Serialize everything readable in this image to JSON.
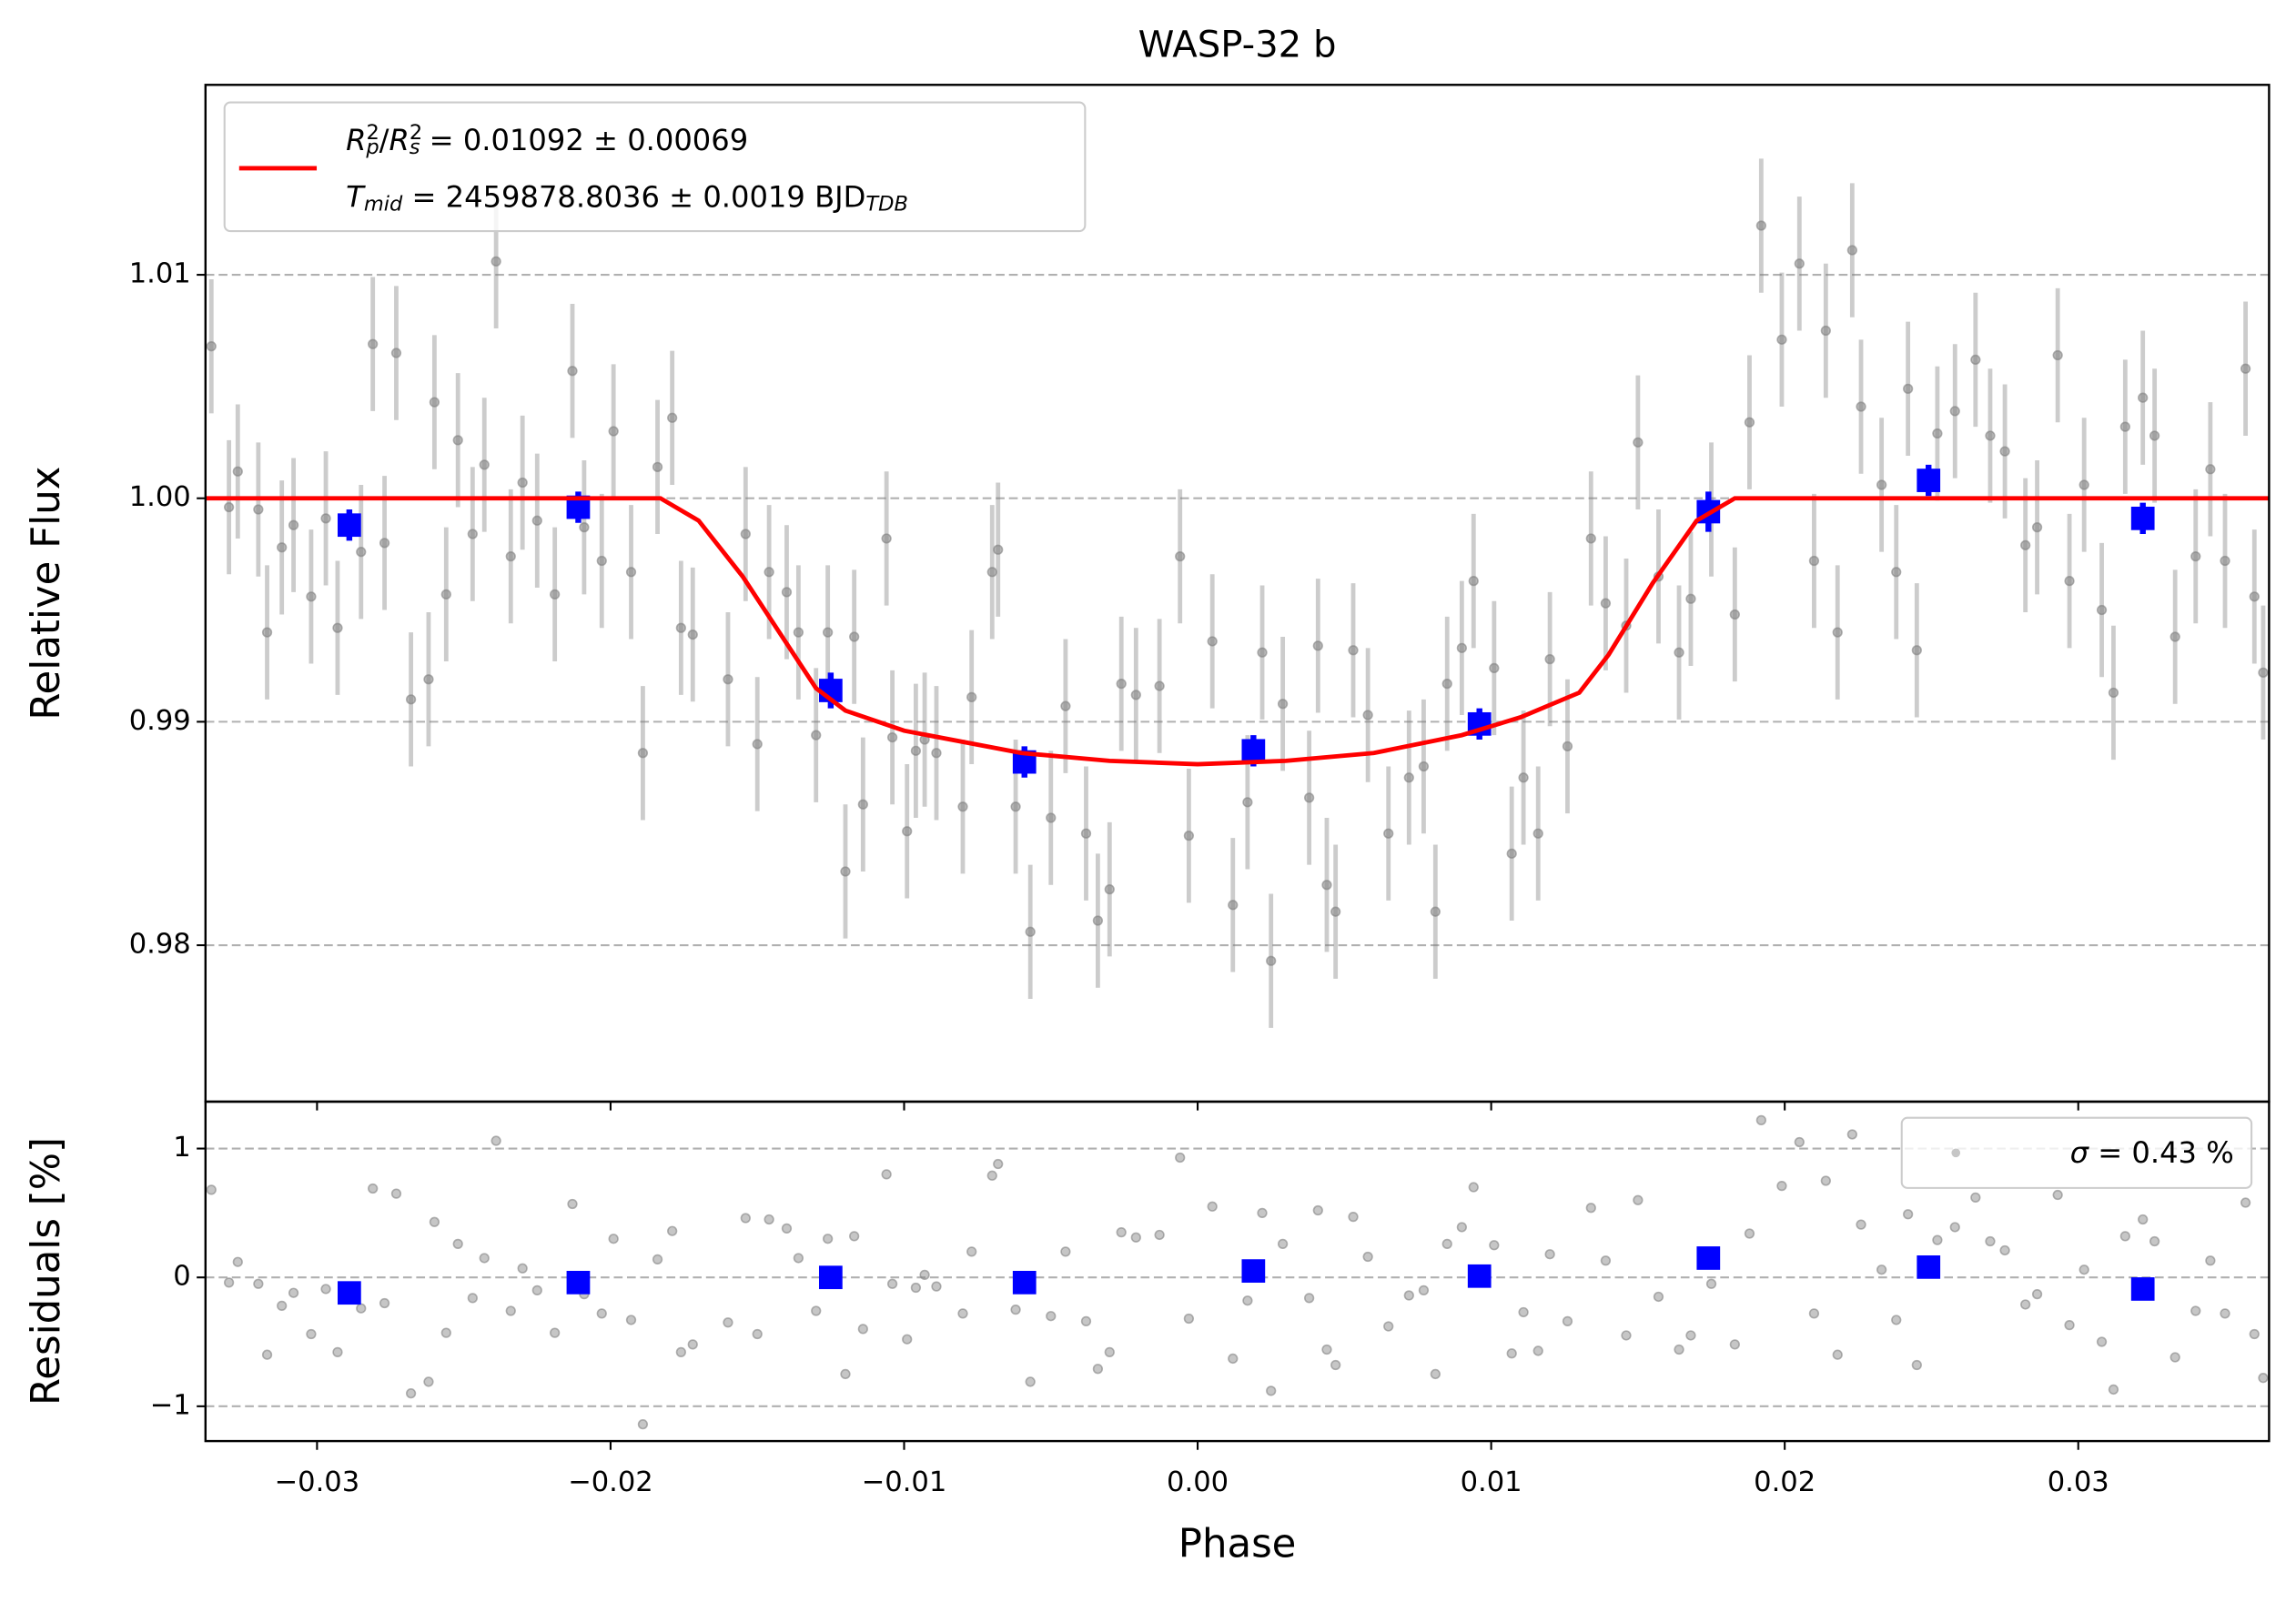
{
  "chart_data": [
    {
      "type": "scatter",
      "title": "WASP-32 b",
      "y_label": "Relative Flux",
      "xlim": [
        -0.0338,
        0.0365
      ],
      "ylim": [
        0.973,
        1.0185
      ],
      "xticks": [
        -0.03,
        -0.02,
        -0.01,
        0,
        0.01,
        0.02,
        0.03
      ],
      "yticks": [
        0.98,
        0.99,
        {
          "value": 1.0,
          "label": "1.00"
        },
        1.01
      ],
      "grid": "y",
      "legend": {
        "loc": "upper left",
        "lines": [
          [
            {
              "text": "R",
              "style": "italic"
            },
            {
              "text": "2",
              "style": "sup"
            },
            {
              "text": "p",
              "style": "sub-stack"
            },
            {
              "text": "/",
              "style": "normal"
            },
            {
              "text": "R",
              "style": "italic"
            },
            {
              "text": "2",
              "style": "sup"
            },
            {
              "text": "s",
              "style": "sub-stack"
            },
            {
              "text": " = 0.01092 ± 0.00069",
              "style": "normal"
            }
          ],
          [
            {
              "text": "T",
              "style": "italic"
            },
            {
              "text": "mid",
              "style": "sub"
            },
            {
              "text": " = 2459878.8036 ± 0.0019 BJD",
              "style": "normal"
            },
            {
              "text": "TDB",
              "style": "sub"
            }
          ]
        ]
      },
      "series": [
        {
          "kind": "errorbar",
          "color": "#808080",
          "error": 0.003,
          "x": [
            -0.0336,
            -0.033,
            -0.0327,
            -0.032,
            -0.0317,
            -0.0312,
            -0.0308,
            -0.0302,
            -0.0297,
            -0.0293,
            -0.0285,
            -0.0281,
            -0.0277,
            -0.0273,
            -0.0268,
            -0.0262,
            -0.026,
            -0.0256,
            -0.0252,
            -0.0247,
            -0.0243,
            -0.0239,
            -0.0234,
            -0.023,
            -0.0225,
            -0.0219,
            -0.0213,
            -0.0209,
            -0.0203,
            -0.0199,
            -0.0193,
            -0.0189,
            -0.0184,
            -0.0179,
            -0.0176,
            -0.0172,
            -0.016,
            -0.0154,
            -0.015,
            -0.0146,
            -0.014,
            -0.0136,
            -0.013,
            -0.0126,
            -0.012,
            -0.0117,
            -0.0114,
            -0.0106,
            -0.0104,
            -0.0099,
            -0.0096,
            -0.0093,
            -0.0089,
            -0.008,
            -0.0077,
            -0.007,
            -0.0068,
            -0.0062,
            -0.0057,
            -0.005,
            -0.0045,
            -0.0038,
            -0.0034,
            -0.003,
            -0.0026,
            -0.0021,
            -0.0013,
            -0.0006,
            -0.0003,
            0.0005,
            0.0012,
            0.0017,
            0.0022,
            0.0025,
            0.0029,
            0.0038,
            0.0041,
            0.0044,
            0.0047,
            0.0053,
            0.0058,
            0.0065,
            0.0072,
            0.0077,
            0.0081,
            0.0085,
            0.009,
            0.0094,
            0.0101,
            0.0107,
            0.0111,
            0.0116,
            0.012,
            0.0126,
            0.0134,
            0.0139,
            0.0146,
            0.015,
            0.0157,
            0.0164,
            0.0168,
            0.0175,
            0.0183,
            0.0188,
            0.0192,
            0.0199,
            0.0205,
            0.021,
            0.0214,
            0.0218,
            0.0223,
            0.0226,
            0.0233,
            0.0238,
            0.0242,
            0.0245,
            0.0252,
            0.0258,
            0.0265,
            0.027,
            0.0275,
            0.0282,
            0.0286,
            0.0293,
            0.0297,
            0.0302,
            0.0308,
            0.0312,
            0.0316,
            0.0322,
            0.0326,
            0.0333,
            0.034,
            0.0345,
            0.035,
            0.0357,
            0.036,
            0.0363
          ],
          "values": [
            1.0068,
            0.9996,
            1.0012,
            0.9995,
            0.994,
            0.9978,
            0.9988,
            0.9956,
            0.9991,
            0.9942,
            0.9976,
            1.0069,
            0.998,
            1.0065,
            0.991,
            0.9919,
            1.0043,
            0.9957,
            1.0026,
            0.9984,
            1.0015,
            1.0106,
            0.9974,
            1.0007,
            0.999,
            0.9957,
            1.0057,
            0.9987,
            0.9972,
            1.003,
            0.9967,
            0.9886,
            1.0014,
            1.0036,
            0.9942,
            0.9939,
            0.9919,
            0.9984,
            0.989,
            0.9967,
            0.9958,
            0.994,
            0.9894,
            0.994,
            0.9833,
            0.9938,
            0.9863,
            0.9982,
            0.9893,
            0.9851,
            0.9887,
            0.9892,
            0.9886,
            0.9862,
            0.9911,
            0.9967,
            0.9977,
            0.9862,
            0.9806,
            0.9857,
            0.9907,
            0.985,
            0.9811,
            0.9825,
            0.9917,
            0.9912,
            0.9916,
            0.9974,
            0.9849,
            0.9936,
            0.9818,
            0.9864,
            0.9931,
            0.9793,
            0.9908,
            0.9866,
            0.9934,
            0.9827,
            0.9815,
            0.9932,
            0.9903,
            0.985,
            0.9875,
            0.988,
            0.9815,
            0.9917,
            0.9933,
            0.9963,
            0.9924,
            0.9841,
            0.9875,
            0.985,
            0.9928,
            0.9889,
            0.9982,
            0.9953,
            0.9943,
            1.0025,
            0.9965,
            0.9931,
            0.9955,
            0.9995,
            0.9948,
            1.0034,
            1.0122,
            1.0071,
            1.0105,
            0.9972,
            1.0075,
            0.994,
            1.0111,
            1.0041,
            1.0006,
            0.9967,
            1.0049,
            0.9932,
            1.0029,
            1.0039,
            1.0062,
            1.0028,
            1.0021,
            0.9979,
            0.9987,
            1.0064,
            0.9963,
            1.0006,
            0.995,
            0.9913,
            1.0032,
            1.0045,
            1.0028,
            0.9938,
            0.9974,
            1.0013,
            0.9972,
            1.0058,
            0.9956,
            0.9922
          ]
        },
        {
          "kind": "marker",
          "color": "#0000ff",
          "x": [
            -0.0289,
            -0.0211,
            -0.0125,
            -0.0059,
            0.0019,
            0.0096,
            0.0174,
            0.0249,
            0.0322
          ],
          "values": [
            0.9988,
            0.9996,
            0.9914,
            0.9882,
            0.9887,
            0.9899,
            0.9994,
            1.0008,
            0.9991
          ],
          "errors": [
            0.0007,
            0.0007,
            0.0008,
            0.0007,
            0.0007,
            0.0007,
            0.0009,
            0.0007,
            0.0007
          ]
        },
        {
          "kind": "line",
          "color": "#ff0000",
          "x": [
            -0.0338,
            -0.0183,
            -0.017,
            -0.0155,
            -0.014,
            -0.013,
            -0.012,
            -0.01,
            -0.006,
            -0.003,
            0,
            0.003,
            0.006,
            0.009,
            0.011,
            0.013,
            0.014,
            0.0155,
            0.017,
            0.0183,
            0.0365
          ],
          "values": [
            1.0,
            1.0,
            0.999,
            0.9965,
            0.9935,
            0.9915,
            0.9905,
            0.9896,
            0.9886,
            0.98825,
            0.9881,
            0.98825,
            0.9886,
            0.9894,
            0.9902,
            0.9913,
            0.993,
            0.9962,
            0.999,
            1.0,
            1.0
          ]
        }
      ]
    },
    {
      "type": "scatter",
      "x_label": "Phase",
      "y_label": "Residuals [%]",
      "xlim": [
        -0.0338,
        0.0365
      ],
      "ylim": [
        -1.27,
        1.364
      ],
      "xticks": [
        {
          "value": -0.03,
          "label": "−0.03"
        },
        {
          "value": -0.02,
          "label": "−0.02"
        },
        {
          "value": -0.01,
          "label": "−0.01"
        },
        {
          "value": 0,
          "label": "0.00"
        },
        0.01,
        0.02,
        0.03
      ],
      "yticks": [
        {
          "value": -1,
          "label": "−1"
        },
        0,
        1
      ],
      "grid": "y",
      "legend": {
        "loc": "upper right",
        "lines": [
          [
            {
              "text": "σ",
              "style": "italic"
            },
            {
              "text": " = 0.43 %",
              "style": "normal"
            }
          ]
        ]
      },
      "series": [
        {
          "kind": "dot",
          "color": "#808080",
          "x": [
            -0.0336,
            -0.033,
            -0.0327,
            -0.032,
            -0.0317,
            -0.0312,
            -0.0308,
            -0.0302,
            -0.0297,
            -0.0293,
            -0.0285,
            -0.0281,
            -0.0277,
            -0.0273,
            -0.0268,
            -0.0262,
            -0.026,
            -0.0256,
            -0.0252,
            -0.0247,
            -0.0243,
            -0.0239,
            -0.0234,
            -0.023,
            -0.0225,
            -0.0219,
            -0.0213,
            -0.0209,
            -0.0203,
            -0.0199,
            -0.0193,
            -0.0189,
            -0.0184,
            -0.0179,
            -0.0176,
            -0.0172,
            -0.016,
            -0.0154,
            -0.015,
            -0.0146,
            -0.014,
            -0.0136,
            -0.013,
            -0.0126,
            -0.012,
            -0.0117,
            -0.0114,
            -0.0106,
            -0.0104,
            -0.0099,
            -0.0096,
            -0.0093,
            -0.0089,
            -0.008,
            -0.0077,
            -0.007,
            -0.0068,
            -0.0062,
            -0.0057,
            -0.005,
            -0.0045,
            -0.0038,
            -0.0034,
            -0.003,
            -0.0026,
            -0.0021,
            -0.0013,
            -0.0006,
            -0.0003,
            0.0005,
            0.0012,
            0.0017,
            0.0022,
            0.0025,
            0.0029,
            0.0038,
            0.0041,
            0.0044,
            0.0047,
            0.0053,
            0.0058,
            0.0065,
            0.0072,
            0.0077,
            0.0081,
            0.0085,
            0.009,
            0.0094,
            0.0101,
            0.0107,
            0.0111,
            0.0116,
            0.012,
            0.0126,
            0.0134,
            0.0139,
            0.0146,
            0.015,
            0.0157,
            0.0164,
            0.0168,
            0.0175,
            0.0183,
            0.0188,
            0.0192,
            0.0199,
            0.0205,
            0.021,
            0.0214,
            0.0218,
            0.0223,
            0.0226,
            0.0233,
            0.0238,
            0.0242,
            0.0245,
            0.0252,
            0.0258,
            0.0265,
            0.027,
            0.0275,
            0.0282,
            0.0286,
            0.0293,
            0.0297,
            0.0302,
            0.0308,
            0.0312,
            0.0316,
            0.0322,
            0.0326,
            0.0333,
            0.034,
            0.0345,
            0.035,
            0.0357,
            0.036,
            0.0363
          ],
          "values": [
            0.68,
            -0.04,
            0.12,
            -0.05,
            -0.6,
            -0.22,
            -0.12,
            -0.44,
            -0.09,
            -0.58,
            -0.24,
            0.69,
            -0.2,
            0.65,
            -0.9,
            -0.81,
            0.43,
            -0.43,
            0.26,
            -0.16,
            0.15,
            1.06,
            -0.26,
            0.07,
            -0.1,
            -0.43,
            0.57,
            -0.13,
            -0.28,
            0.3,
            -0.33,
            -1.14,
            0.14,
            0.36,
            -0.58,
            -0.52,
            -0.35,
            0.46,
            -0.44,
            0.45,
            0.38,
            0.15,
            -0.26,
            0.3,
            -0.75,
            0.32,
            -0.4,
            0.8,
            -0.05,
            -0.48,
            -0.08,
            0.02,
            -0.07,
            -0.28,
            0.2,
            0.79,
            0.88,
            -0.25,
            -0.81,
            -0.3,
            0.2,
            -0.34,
            -0.71,
            -0.58,
            0.35,
            0.31,
            0.33,
            0.93,
            -0.32,
            0.55,
            -0.63,
            -0.18,
            0.5,
            -0.88,
            0.26,
            -0.16,
            0.52,
            -0.56,
            -0.68,
            0.47,
            0.16,
            -0.38,
            -0.14,
            -0.1,
            -0.75,
            0.26,
            0.39,
            0.7,
            0.25,
            -0.59,
            -0.27,
            -0.57,
            0.18,
            -0.34,
            0.54,
            0.13,
            -0.45,
            0.6,
            -0.15,
            -0.56,
            -0.45,
            -0.05,
            -0.52,
            0.34,
            1.22,
            0.71,
            1.05,
            -0.28,
            0.75,
            -0.6,
            1.11,
            0.41,
            0.06,
            -0.33,
            0.49,
            -0.68,
            0.29,
            0.39,
            0.62,
            0.28,
            0.21,
            -0.21,
            -0.13,
            0.64,
            -0.37,
            0.06,
            -0.5,
            -0.87,
            0.32,
            0.45,
            0.28,
            -0.62,
            -0.26,
            0.13,
            -0.28,
            0.58,
            -0.44,
            -0.78
          ]
        },
        {
          "kind": "marker",
          "color": "#0000ff",
          "x": [
            -0.0289,
            -0.0211,
            -0.0125,
            -0.0059,
            0.0019,
            0.0096,
            0.0174,
            0.0249,
            0.0322
          ],
          "values": [
            -0.12,
            -0.04,
            0.0,
            -0.04,
            0.05,
            0.01,
            0.15,
            0.08,
            -0.09
          ]
        }
      ]
    }
  ]
}
